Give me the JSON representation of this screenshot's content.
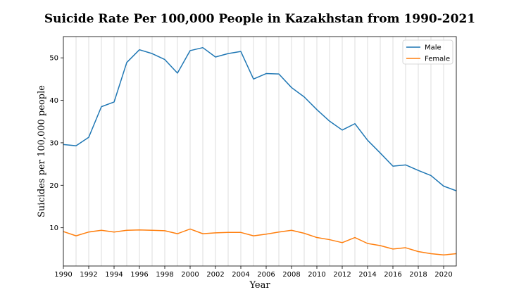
{
  "chart_data": {
    "type": "line",
    "title": "Suicide Rate Per 100,000 People in Kazakhstan from 1990-2021",
    "xlabel": "Year",
    "ylabel": "Suicides per 100,000 people",
    "xlim": [
      1990,
      2021
    ],
    "ylim": [
      1,
      55
    ],
    "x_ticks": [
      1990,
      1992,
      1994,
      1996,
      1998,
      2000,
      2002,
      2004,
      2006,
      2008,
      2010,
      2012,
      2014,
      2016,
      2018,
      2020
    ],
    "y_ticks": [
      10,
      20,
      30,
      40,
      50
    ],
    "grid": "vertical at every year",
    "legend_position": "top-right",
    "x": [
      1990,
      1991,
      1992,
      1993,
      1994,
      1995,
      1996,
      1997,
      1998,
      1999,
      2000,
      2001,
      2002,
      2003,
      2004,
      2005,
      2006,
      2007,
      2008,
      2009,
      2010,
      2011,
      2012,
      2013,
      2014,
      2015,
      2016,
      2017,
      2018,
      2019,
      2020,
      2021
    ],
    "series": [
      {
        "name": "Male",
        "color": "#1f77b4",
        "values": [
          29.6,
          29.3,
          31.3,
          38.5,
          39.6,
          48.9,
          51.9,
          51.0,
          49.6,
          46.4,
          51.7,
          52.4,
          50.2,
          51.0,
          51.5,
          45.0,
          46.3,
          46.2,
          43.0,
          40.8,
          37.8,
          35.1,
          33.0,
          34.5,
          30.6,
          27.6,
          24.5,
          24.8,
          23.5,
          22.3,
          19.8,
          18.7
        ]
      },
      {
        "name": "Female",
        "color": "#ff7f0e",
        "values": [
          9.1,
          8.1,
          9.0,
          9.4,
          9.0,
          9.4,
          9.5,
          9.4,
          9.3,
          8.6,
          9.7,
          8.6,
          8.8,
          8.9,
          8.9,
          8.1,
          8.5,
          9.0,
          9.4,
          8.7,
          7.7,
          7.2,
          6.5,
          7.7,
          6.3,
          5.8,
          5.0,
          5.3,
          4.4,
          3.9,
          3.6,
          3.9
        ]
      }
    ]
  }
}
